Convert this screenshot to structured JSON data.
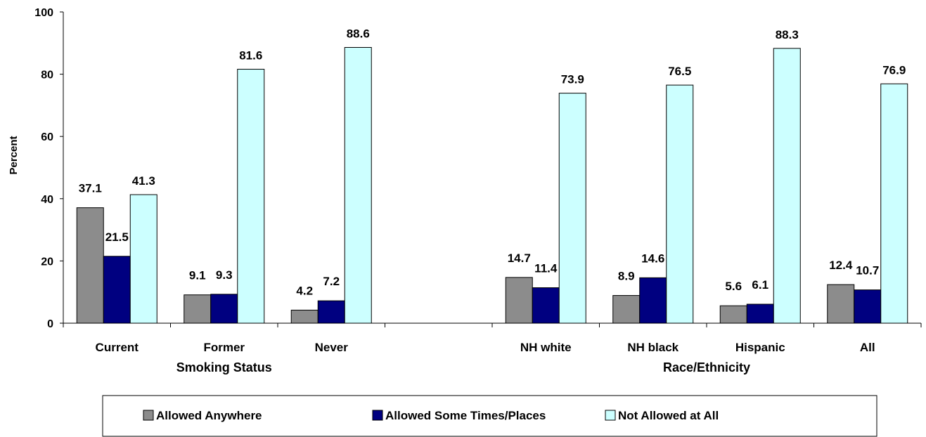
{
  "chart_data": {
    "type": "bar",
    "ylabel": "Percent",
    "ylim": [
      0,
      100
    ],
    "yticks": [
      "0",
      "20",
      "40",
      "60",
      "80",
      "100"
    ],
    "grid": false,
    "legend_position": "bottom",
    "groups": [
      {
        "label": "Smoking Status",
        "categories": [
          "Current",
          "Former",
          "Never"
        ]
      },
      {
        "label": "Race/Ethnicity",
        "categories": [
          "NH white",
          "NH black",
          "Hispanic",
          "All"
        ]
      }
    ],
    "categories": [
      "Current",
      "Former",
      "Never",
      "",
      "NH white",
      "NH black",
      "Hispanic",
      "All"
    ],
    "series": [
      {
        "name": "Allowed Anywhere",
        "color": "#8c8c8c",
        "values": [
          37.1,
          9.1,
          4.2,
          null,
          14.7,
          8.9,
          5.6,
          12.4
        ],
        "labels": [
          "37.1",
          "9.1",
          "4.2",
          "",
          "14.7",
          "8.9",
          "5.6",
          "12.4"
        ]
      },
      {
        "name": "Allowed Some Times/Places",
        "color": "#000080",
        "values": [
          21.5,
          9.3,
          7.2,
          null,
          11.4,
          14.6,
          6.1,
          10.7
        ],
        "labels": [
          "21.5",
          "9.3",
          "7.2",
          "",
          "11.4",
          "14.6",
          "6.1",
          "10.7"
        ]
      },
      {
        "name": "Not Allowed at All",
        "color": "#ccffff",
        "values": [
          41.3,
          81.6,
          88.6,
          null,
          73.9,
          76.5,
          88.3,
          76.9
        ],
        "labels": [
          "41.3",
          "81.6",
          "88.6",
          "",
          "73.9",
          "76.5",
          "88.3",
          "76.9"
        ]
      }
    ]
  }
}
